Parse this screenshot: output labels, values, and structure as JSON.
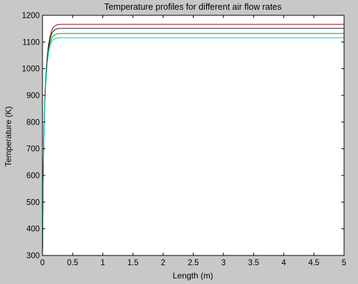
{
  "chart_data": {
    "type": "line",
    "title": "Temperature profiles for different air flow rates",
    "xlabel": "Length (m)",
    "ylabel": "Temperature (K)",
    "xlim": [
      0,
      5
    ],
    "ylim": [
      300,
      1200
    ],
    "x_ticks": [
      0,
      0.5,
      1,
      1.5,
      2,
      2.5,
      3,
      3.5,
      4,
      4.5,
      5
    ],
    "x_tick_labels": [
      "0",
      "0.5",
      "1",
      "1.5",
      "2",
      "2.5",
      "3",
      "3.5",
      "4",
      "4.5",
      "5"
    ],
    "y_ticks": [
      300,
      400,
      500,
      600,
      700,
      800,
      900,
      1000,
      1100,
      1200
    ],
    "y_tick_labels": [
      "300",
      "400",
      "500",
      "600",
      "700",
      "800",
      "900",
      "1000",
      "1100",
      "1200"
    ],
    "grid": false,
    "legend": "none",
    "background": "#c8c8c8",
    "plot_background": "#ffffff",
    "series": [
      {
        "color": "#8b0000",
        "x": [
          0,
          0.01,
          0.02,
          0.04,
          0.06,
          0.08,
          0.1,
          0.13,
          0.16,
          0.2,
          0.25,
          0.3,
          0.5,
          1,
          1.5,
          2,
          2.5,
          3,
          3.5,
          4,
          4.5,
          5
        ],
        "y": [
          300,
          560,
          730,
          900,
          990,
          1050,
          1090,
          1125,
          1148,
          1160,
          1165,
          1166,
          1166,
          1166,
          1166,
          1166,
          1166,
          1166,
          1166,
          1166,
          1166,
          1166
        ]
      },
      {
        "color": "#1a1a3a",
        "x": [
          0,
          0.01,
          0.02,
          0.04,
          0.06,
          0.08,
          0.1,
          0.13,
          0.16,
          0.2,
          0.25,
          0.3,
          0.5,
          1,
          1.5,
          2,
          2.5,
          3,
          3.5,
          4,
          4.5,
          5
        ],
        "y": [
          300,
          550,
          720,
          890,
          980,
          1040,
          1080,
          1115,
          1135,
          1145,
          1150,
          1151,
          1151,
          1151,
          1151,
          1151,
          1151,
          1151,
          1151,
          1151,
          1151,
          1151
        ]
      },
      {
        "color": "#00a000",
        "x": [
          0,
          0.01,
          0.02,
          0.04,
          0.06,
          0.08,
          0.1,
          0.13,
          0.16,
          0.2,
          0.25,
          0.3,
          0.5,
          1,
          1.5,
          2,
          2.5,
          3,
          3.5,
          4,
          4.5,
          5
        ],
        "y": [
          300,
          540,
          710,
          880,
          970,
          1030,
          1070,
          1100,
          1118,
          1127,
          1131,
          1132,
          1132,
          1132,
          1132,
          1132,
          1132,
          1132,
          1132,
          1132,
          1132,
          1132
        ]
      },
      {
        "color": "#00c8c8",
        "x": [
          0,
          0.01,
          0.02,
          0.04,
          0.06,
          0.08,
          0.1,
          0.13,
          0.16,
          0.2,
          0.25,
          0.3,
          0.5,
          1,
          1.5,
          2,
          2.5,
          3,
          3.5,
          4,
          4.5,
          5
        ],
        "y": [
          300,
          530,
          700,
          870,
          960,
          1020,
          1060,
          1090,
          1105,
          1112,
          1115,
          1116,
          1116,
          1116,
          1116,
          1116,
          1116,
          1116,
          1116,
          1116,
          1116,
          1116
        ]
      }
    ]
  }
}
